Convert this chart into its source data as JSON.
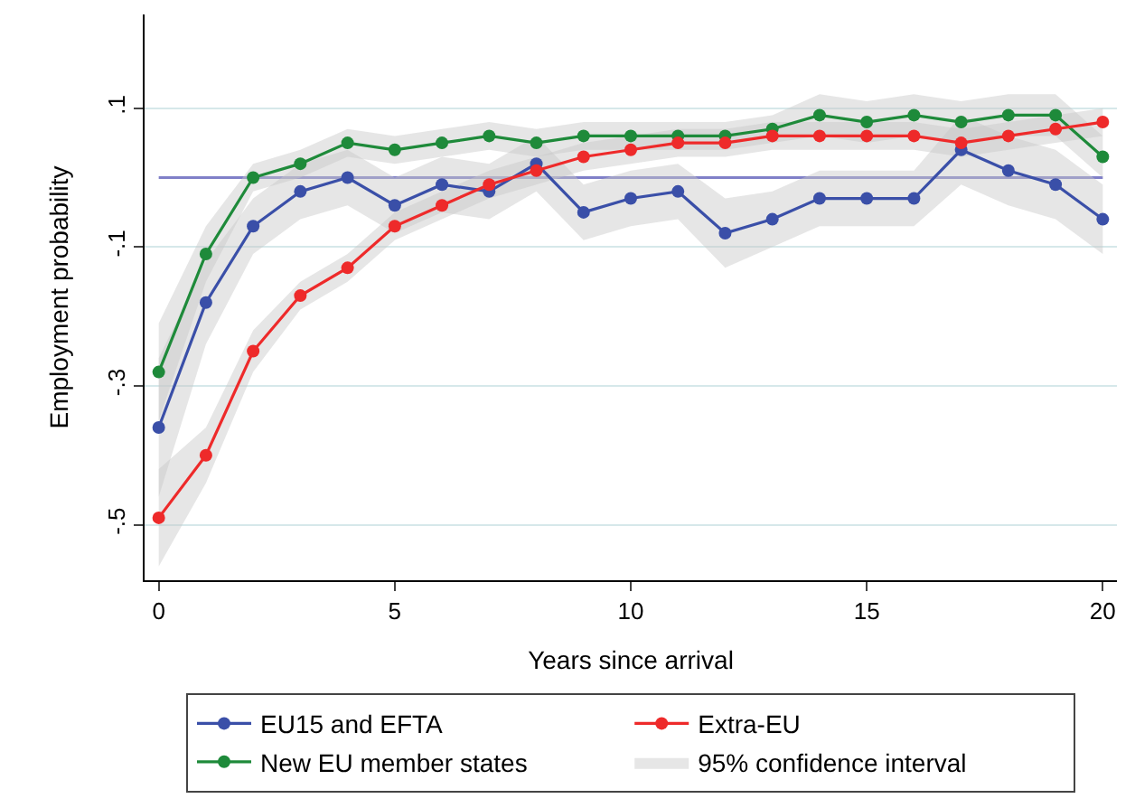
{
  "chart_data": {
    "type": "line",
    "xlabel": "Years since arrival",
    "ylabel": "Employment probability",
    "x": [
      0,
      1,
      2,
      3,
      4,
      5,
      6,
      7,
      8,
      9,
      10,
      11,
      12,
      13,
      14,
      15,
      16,
      17,
      18,
      19,
      20
    ],
    "series": [
      {
        "name": "EU15 and EFTA",
        "color": "#3a4fa8",
        "values": [
          -0.36,
          -0.18,
          -0.07,
          -0.02,
          0.0,
          -0.04,
          -0.01,
          -0.02,
          0.02,
          -0.05,
          -0.03,
          -0.02,
          -0.08,
          -0.06,
          -0.03,
          -0.03,
          -0.03,
          0.04,
          0.01,
          -0.01,
          -0.06
        ],
        "lower": [
          -0.46,
          -0.24,
          -0.11,
          -0.06,
          -0.04,
          -0.08,
          -0.05,
          -0.06,
          -0.02,
          -0.09,
          -0.07,
          -0.06,
          -0.13,
          -0.1,
          -0.07,
          -0.07,
          -0.07,
          -0.01,
          -0.04,
          -0.06,
          -0.11
        ],
        "upper": [
          -0.26,
          -0.12,
          -0.03,
          0.02,
          0.04,
          0.0,
          0.03,
          0.02,
          0.06,
          -0.01,
          0.01,
          0.02,
          -0.03,
          -0.02,
          0.01,
          0.01,
          0.01,
          0.09,
          0.06,
          0.04,
          -0.01
        ]
      },
      {
        "name": "New EU member states",
        "color": "#1e8a3a",
        "values": [
          -0.28,
          -0.11,
          0.0,
          0.02,
          0.05,
          0.04,
          0.05,
          0.06,
          0.05,
          0.06,
          0.06,
          0.06,
          0.06,
          0.07,
          0.09,
          0.08,
          0.09,
          0.08,
          0.09,
          0.09,
          0.03
        ],
        "lower": [
          -0.35,
          -0.15,
          -0.02,
          0.0,
          0.03,
          0.02,
          0.03,
          0.04,
          0.03,
          0.04,
          0.04,
          0.04,
          0.04,
          0.05,
          0.06,
          0.05,
          0.06,
          0.05,
          0.06,
          0.06,
          0.0
        ],
        "upper": [
          -0.21,
          -0.07,
          0.02,
          0.04,
          0.07,
          0.06,
          0.07,
          0.08,
          0.07,
          0.08,
          0.08,
          0.08,
          0.08,
          0.09,
          0.12,
          0.11,
          0.12,
          0.11,
          0.12,
          0.12,
          0.06
        ]
      },
      {
        "name": "Extra-EU",
        "color": "#ee2a2a",
        "values": [
          -0.49,
          -0.4,
          -0.25,
          -0.17,
          -0.13,
          -0.07,
          -0.04,
          -0.01,
          0.01,
          0.03,
          0.04,
          0.05,
          0.05,
          0.06,
          0.06,
          0.06,
          0.06,
          0.05,
          0.06,
          0.07,
          0.08
        ],
        "lower": [
          -0.56,
          -0.44,
          -0.28,
          -0.19,
          -0.15,
          -0.09,
          -0.06,
          -0.03,
          -0.01,
          0.01,
          0.02,
          0.03,
          0.03,
          0.04,
          0.04,
          0.04,
          0.04,
          0.03,
          0.04,
          0.05,
          0.06
        ],
        "upper": [
          -0.42,
          -0.36,
          -0.22,
          -0.15,
          -0.11,
          -0.05,
          -0.02,
          0.01,
          0.03,
          0.05,
          0.06,
          0.07,
          0.07,
          0.08,
          0.08,
          0.08,
          0.08,
          0.07,
          0.08,
          0.09,
          0.1
        ]
      }
    ],
    "annotations": [
      "95% confidence interval"
    ],
    "ref_lines": [
      {
        "axis": "y",
        "value": 0,
        "color": "#8080c8"
      }
    ],
    "xlim": [
      -0.3,
      20.3
    ],
    "xticks": [
      0,
      5,
      10,
      15,
      20
    ],
    "ylim": [
      -0.58,
      0.235
    ],
    "yticks": [
      {
        "value": 0.1,
        "label": ".1"
      },
      {
        "value": -0.1,
        "label": "-.1"
      },
      {
        "value": -0.3,
        "label": "-.3"
      },
      {
        "value": -0.5,
        "label": "-.5"
      }
    ],
    "grid": "y",
    "legend": "bottom",
    "marker": "circle",
    "line_style": "solid"
  }
}
